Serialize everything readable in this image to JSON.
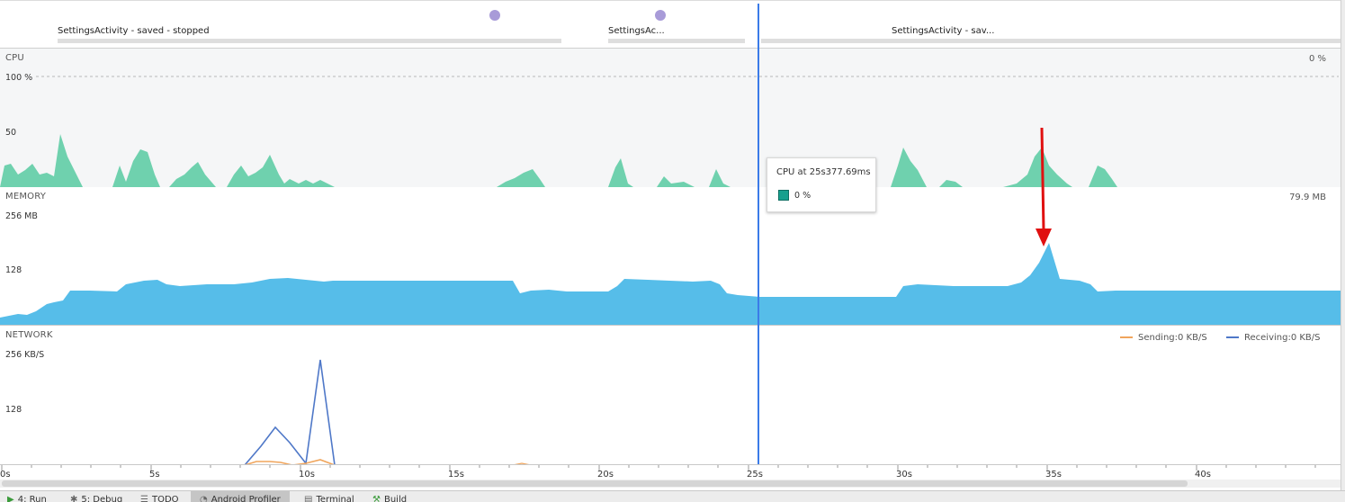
{
  "activities": [
    {
      "label": "SettingsActivity - saved - stopped"
    },
    {
      "label": "SettingsAc..."
    },
    {
      "label": "SettingsActivity - sav..."
    }
  ],
  "cpu": {
    "title": "CPU",
    "current_value": "0 %",
    "axis_max": "100 %",
    "axis_mid": "50",
    "color": "#6fd1ae"
  },
  "memory": {
    "title": "MEMORY",
    "current_value": "79.9 MB",
    "axis_max": "256 MB",
    "axis_mid": "128",
    "color": "#56bde9"
  },
  "network": {
    "title": "NETWORK",
    "axis_max": "256 KB/S",
    "axis_mid": "128",
    "legend_sending": "Sending:0 KB/S",
    "legend_receiving": "Receiving:0 KB/S",
    "sending_color": "#f0a55c",
    "receiving_color": "#4f78c8"
  },
  "timeline": {
    "ticks": [
      "0s",
      "5s",
      "10s",
      "15s",
      "20s",
      "25s",
      "30s",
      "35s",
      "40s"
    ]
  },
  "tooltip": {
    "title": "CPU at 25s377.69ms",
    "value": "0 %",
    "swatch_color": "#17a08e"
  },
  "annotation": {
    "color": "#e01010"
  },
  "toolbar": {
    "tabs": [
      {
        "label": "4: Run",
        "icon": "run-icon"
      },
      {
        "label": "5: Debug",
        "icon": "debug-icon"
      },
      {
        "label": "TODO",
        "icon": "todo-icon"
      },
      {
        "label": "Android Profiler",
        "icon": "profiler-icon"
      },
      {
        "label": "Terminal",
        "icon": "terminal-icon"
      },
      {
        "label": "Build",
        "icon": "build-icon"
      }
    ]
  }
}
